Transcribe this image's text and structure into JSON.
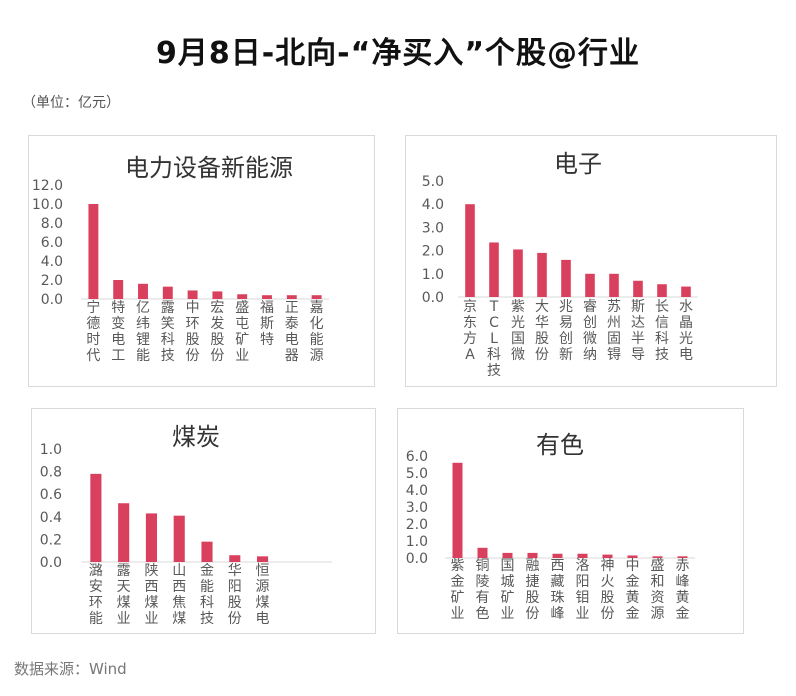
{
  "page": {
    "title": "9月8日-北向-“净买入”个股@行业",
    "unit": "（单位：亿元）",
    "source": "数据来源：Wind"
  },
  "colors": {
    "bar": "#d9405e",
    "axis_text": "#595959",
    "title_text": "#333333"
  },
  "chart_data": [
    {
      "type": "bar",
      "title": "电力设备新能源",
      "categories": [
        "宁德时代",
        "特变电工",
        "亿纬锂能",
        "露笑科技",
        "中环股份",
        "宏发股份",
        "盛屯矿业",
        "福斯特",
        "正泰电器",
        "嘉化能源"
      ],
      "values": [
        10.0,
        2.0,
        1.6,
        1.3,
        0.9,
        0.8,
        0.5,
        0.4,
        0.4,
        0.4
      ],
      "ylim": [
        0,
        12
      ],
      "yticks": [
        "0.0",
        "2.0",
        "4.0",
        "6.0",
        "8.0",
        "10.0",
        "12.0"
      ],
      "xlabel": "",
      "ylabel": "",
      "grid": false
    },
    {
      "type": "bar",
      "title": "电子",
      "categories": [
        "京东方A",
        "TCL科技",
        "紫光国微",
        "大华股份",
        "兆易创新",
        "睿创微纳",
        "苏州固锝",
        "斯达半导",
        "长信科技",
        "水晶光电"
      ],
      "values": [
        4.0,
        2.35,
        2.05,
        1.9,
        1.6,
        1.0,
        1.0,
        0.7,
        0.55,
        0.45
      ],
      "ylim": [
        0,
        5
      ],
      "yticks": [
        "0.0",
        "1.0",
        "2.0",
        "3.0",
        "4.0",
        "5.0"
      ],
      "xlabel": "",
      "ylabel": "",
      "grid": false
    },
    {
      "type": "bar",
      "title": "煤炭",
      "categories": [
        "潞安环能",
        "露天煤业",
        "陕西煤业",
        "山西焦煤",
        "金能科技",
        "华阳股份",
        "恒源煤电"
      ],
      "values": [
        0.78,
        0.52,
        0.43,
        0.41,
        0.18,
        0.06,
        0.05
      ],
      "ylim": [
        0,
        1
      ],
      "yticks": [
        "0.0",
        "0.2",
        "0.4",
        "0.6",
        "0.8",
        "1.0"
      ],
      "slots": 9,
      "xlabel": "",
      "ylabel": "",
      "grid": false
    },
    {
      "type": "bar",
      "title": "有色",
      "categories": [
        "紫金矿业",
        "铜陵有色",
        "国城矿业",
        "融捷股份",
        "西藏珠峰",
        "洛阳钼业",
        "神火股份",
        "中金黄金",
        "盛和资源",
        "赤峰黄金"
      ],
      "values": [
        5.6,
        0.6,
        0.3,
        0.3,
        0.25,
        0.25,
        0.2,
        0.15,
        0.1,
        0.1
      ],
      "ylim": [
        0,
        6
      ],
      "yticks": [
        "0.0",
        "1.0",
        "2.0",
        "3.0",
        "4.0",
        "5.0",
        "6.0"
      ],
      "xlabel": "",
      "ylabel": "",
      "grid": false
    }
  ]
}
